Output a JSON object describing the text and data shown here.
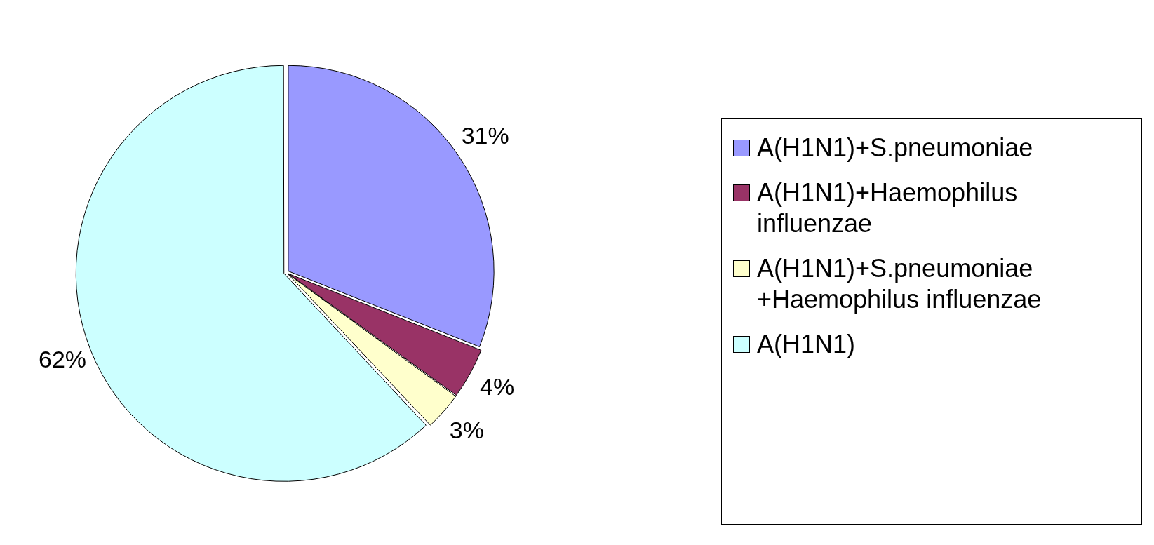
{
  "chart_data": {
    "type": "pie",
    "categories": [
      "A(H1N1)+S.pneumoniae",
      "A(H1N1)+Haemophilus influenzae",
      "A(H1N1)+S.pneumoniae +Haemophilus influenzae",
      "A(H1N1)"
    ],
    "values": [
      31,
      4,
      3,
      62
    ],
    "colors": [
      "#9999ff",
      "#993366",
      "#ffffcc",
      "#ccffff"
    ],
    "value_labels": [
      "31%",
      "4%",
      "3%",
      "62%"
    ],
    "legend": "right"
  }
}
